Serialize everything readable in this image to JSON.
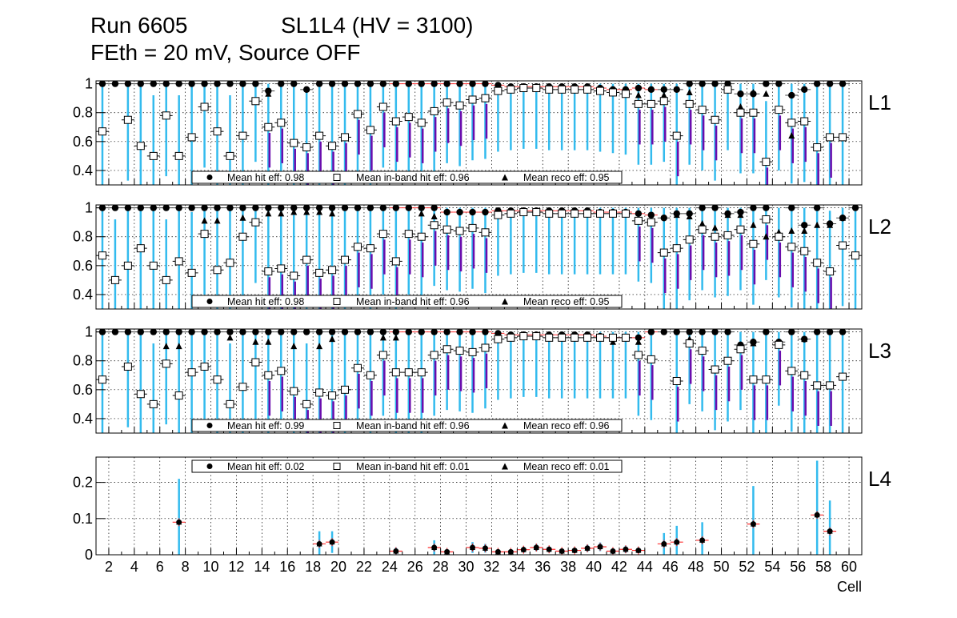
{
  "title": {
    "run": "Run 6605",
    "chamber": "SL1L4 (HV = 3100)",
    "conditions": "FEth = 20 mV, Source OFF"
  },
  "chart_data": {
    "type": "scatter",
    "xlabel": "Cell",
    "xlim": [
      1,
      61
    ],
    "x_ticks": [
      "2",
      "4",
      "6",
      "8",
      "10",
      "12",
      "14",
      "16",
      "18",
      "20",
      "22",
      "24",
      "26",
      "28",
      "30",
      "32",
      "34",
      "36",
      "38",
      "40",
      "42",
      "44",
      "46",
      "48",
      "50",
      "52",
      "54",
      "56",
      "58",
      "60"
    ],
    "cells": [
      1,
      2,
      3,
      4,
      5,
      6,
      7,
      8,
      9,
      10,
      11,
      12,
      13,
      14,
      15,
      16,
      17,
      18,
      19,
      20,
      21,
      22,
      23,
      24,
      25,
      26,
      27,
      28,
      29,
      30,
      31,
      32,
      33,
      34,
      35,
      36,
      37,
      38,
      39,
      40,
      41,
      42,
      43,
      44,
      45,
      46,
      47,
      48,
      49,
      50,
      51,
      52,
      53,
      54,
      55,
      56,
      57,
      58,
      59,
      60
    ],
    "grid": true,
    "colors": {
      "hit": "#000000",
      "inband_err": "#33bbee",
      "reco_err": "#6a0dad",
      "red": "#ff3030"
    },
    "panels": [
      {
        "label": "L1",
        "ylim": [
          0.3,
          1.02
        ],
        "y_ticks": [
          "0.4",
          "0.6",
          "0.8",
          "1"
        ],
        "y_tick_values": [
          0.4,
          0.6,
          0.8,
          1.0
        ],
        "legend": {
          "hit": "Mean hit  eff: 0.98",
          "inband": "Mean in-band hit eff: 0.96",
          "reco": "Mean reco eff: 0.95"
        },
        "hit": [
          1,
          1,
          1,
          1,
          1,
          1,
          1,
          1,
          1,
          1,
          1,
          1,
          1,
          0.95,
          1,
          1,
          0.96,
          1,
          1,
          1,
          1,
          1,
          1,
          1,
          1,
          1,
          1,
          1,
          1,
          1,
          1,
          0.99,
          0.98,
          0.98,
          0.98,
          0.98,
          0.98,
          0.98,
          0.98,
          0.97,
          0.96,
          0.96,
          0.97,
          0.96,
          0.96,
          0.96,
          1,
          1,
          1,
          1,
          0.93,
          0.93,
          1,
          1,
          0.92,
          0.96,
          1,
          1,
          1,
          null
        ],
        "inband": [
          0.67,
          null,
          0.75,
          0.57,
          0.5,
          0.78,
          0.5,
          0.63,
          0.84,
          0.67,
          0.5,
          0.64,
          0.88,
          0.7,
          0.73,
          0.59,
          0.56,
          0.64,
          0.57,
          0.63,
          0.79,
          0.68,
          0.84,
          0.74,
          0.77,
          0.73,
          0.81,
          0.87,
          0.85,
          0.89,
          0.9,
          0.95,
          0.96,
          0.97,
          0.97,
          0.96,
          0.96,
          0.96,
          0.96,
          0.95,
          0.94,
          0.93,
          0.86,
          0.86,
          0.88,
          0.64,
          0.86,
          0.82,
          0.75,
          0.96,
          0.8,
          0.8,
          0.46,
          0.82,
          0.73,
          0.74,
          0.56,
          0.63,
          0.63,
          null
        ],
        "reco": [
          null,
          null,
          null,
          null,
          null,
          null,
          null,
          null,
          null,
          null,
          null,
          null,
          null,
          0.93,
          null,
          null,
          null,
          null,
          null,
          null,
          null,
          null,
          null,
          null,
          null,
          null,
          null,
          null,
          null,
          null,
          null,
          null,
          null,
          null,
          null,
          null,
          null,
          null,
          null,
          null,
          0.94,
          null,
          0.92,
          null,
          0.92,
          null,
          0.94,
          null,
          null,
          null,
          0.84,
          0.94,
          0.93,
          null,
          0.64,
          null,
          null,
          null,
          null,
          null
        ]
      },
      {
        "label": "L2",
        "ylim": [
          0.3,
          1.02
        ],
        "y_ticks": [
          "0.4",
          "0.6",
          "0.8",
          "1"
        ],
        "y_tick_values": [
          0.4,
          0.6,
          0.8,
          1.0
        ],
        "legend": {
          "hit": "Mean hit  eff: 0.98",
          "inband": "Mean in-band hit eff: 0.96",
          "reco": "Mean reco eff: 0.95"
        },
        "hit": [
          1,
          1,
          1,
          1,
          1,
          1,
          1,
          1,
          1,
          1,
          1,
          1,
          1,
          1,
          1,
          1,
          1,
          1,
          1,
          1,
          1,
          1,
          1,
          1,
          1,
          1,
          1,
          0.97,
          0.97,
          0.97,
          0.97,
          0.98,
          0.98,
          0.98,
          0.98,
          0.98,
          0.98,
          0.98,
          0.98,
          0.97,
          0.97,
          0.97,
          0.96,
          0.95,
          0.93,
          0.96,
          0.96,
          1,
          1,
          0.96,
          0.97,
          1,
          1,
          0.8,
          1,
          0.88,
          1,
          0.89,
          0.93,
          1
        ],
        "inband": [
          0.67,
          0.5,
          0.6,
          0.72,
          0.6,
          0.5,
          0.63,
          0.55,
          0.82,
          0.57,
          0.62,
          0.8,
          0.9,
          0.56,
          0.58,
          0.53,
          0.64,
          0.55,
          0.57,
          0.64,
          0.73,
          0.72,
          0.82,
          0.63,
          0.82,
          0.8,
          0.88,
          0.85,
          0.84,
          0.86,
          0.83,
          0.95,
          0.96,
          0.97,
          0.97,
          0.96,
          0.96,
          0.96,
          0.96,
          0.96,
          0.96,
          0.96,
          0.91,
          0.9,
          0.69,
          0.72,
          0.78,
          0.85,
          0.8,
          0.81,
          0.85,
          0.75,
          0.92,
          0.8,
          0.73,
          0.7,
          0.62,
          0.56,
          0.74,
          0.67
        ],
        "reco": [
          null,
          null,
          null,
          null,
          null,
          null,
          null,
          null,
          0.91,
          0.91,
          null,
          0.93,
          null,
          0.96,
          0.96,
          0.97,
          0.97,
          0.97,
          0.96,
          null,
          null,
          null,
          null,
          null,
          null,
          0.96,
          0.94,
          null,
          null,
          null,
          null,
          null,
          null,
          null,
          null,
          null,
          null,
          null,
          null,
          null,
          null,
          null,
          null,
          null,
          null,
          0.95,
          0.94,
          0.89,
          0.86,
          0.95,
          0.95,
          0.88,
          0.8,
          0.83,
          0.84,
          0.84,
          0.88,
          0.88,
          0.93,
          null
        ]
      },
      {
        "label": "L3",
        "ylim": [
          0.3,
          1.02
        ],
        "y_ticks": [
          "0.4",
          "0.6",
          "0.8",
          "1"
        ],
        "y_tick_values": [
          0.4,
          0.6,
          0.8,
          1.0
        ],
        "legend": {
          "hit": "Mean hit  eff: 0.99",
          "inband": "Mean in-band hit eff: 0.96",
          "reco": "Mean reco eff: 0.96"
        },
        "hit": [
          1,
          1,
          1,
          1,
          1,
          1,
          1,
          1,
          1,
          1,
          1,
          1,
          1,
          1,
          1,
          1,
          1,
          1,
          1,
          1,
          1,
          1,
          1,
          1,
          1,
          1,
          1,
          1,
          1,
          1,
          1,
          0.99,
          0.98,
          0.98,
          0.98,
          0.98,
          0.98,
          0.98,
          0.98,
          0.97,
          0.96,
          0.96,
          0.96,
          1,
          1,
          1,
          1,
          1,
          1,
          1,
          0.91,
          0.93,
          1,
          0.93,
          1,
          0.95,
          1,
          1,
          1,
          null
        ],
        "inband": [
          0.67,
          null,
          0.76,
          0.57,
          0.5,
          0.78,
          0.56,
          0.72,
          0.76,
          0.67,
          0.5,
          0.62,
          0.79,
          0.7,
          0.73,
          0.59,
          0.5,
          0.58,
          0.56,
          0.6,
          0.75,
          0.7,
          0.84,
          0.72,
          0.72,
          0.72,
          0.84,
          0.88,
          0.87,
          0.86,
          0.89,
          0.95,
          0.96,
          0.97,
          0.97,
          0.96,
          0.96,
          0.96,
          0.96,
          0.96,
          0.96,
          0.96,
          0.84,
          0.81,
          null,
          0.66,
          0.92,
          0.87,
          0.74,
          0.8,
          0.88,
          0.67,
          0.67,
          0.91,
          0.73,
          0.7,
          0.63,
          0.63,
          0.69,
          null
        ],
        "reco": [
          null,
          null,
          null,
          null,
          null,
          0.9,
          0.9,
          null,
          null,
          null,
          0.96,
          null,
          0.93,
          0.93,
          null,
          0.9,
          null,
          0.9,
          0.95,
          null,
          null,
          null,
          0.96,
          0.96,
          null,
          null,
          null,
          null,
          null,
          null,
          null,
          null,
          null,
          null,
          null,
          null,
          null,
          null,
          null,
          null,
          0.93,
          null,
          0.93,
          null,
          null,
          null,
          0.95,
          null,
          null,
          null,
          0.91,
          0.92,
          null,
          0.91,
          null,
          0.95,
          null,
          null,
          null,
          null
        ]
      },
      {
        "label": "L4",
        "ylim": [
          0,
          0.27
        ],
        "y_ticks": [
          "0",
          "0.1",
          "0.2"
        ],
        "y_tick_values": [
          0,
          0.1,
          0.2
        ],
        "legend": {
          "hit": "Mean hit  eff: 0.02",
          "inband": "Mean in-band hit eff: 0.01",
          "reco": "Mean reco eff: 0.01"
        },
        "points": [
          {
            "cell": 7,
            "value": 0.09,
            "err": 0.12
          },
          {
            "cell": 18,
            "value": 0.03,
            "err": 0.035
          },
          {
            "cell": 19,
            "value": 0.035,
            "err": 0.03
          },
          {
            "cell": 24,
            "value": 0.01,
            "err": 0.01
          },
          {
            "cell": 27,
            "value": 0.02,
            "err": 0.02
          },
          {
            "cell": 28,
            "value": 0.008,
            "err": 0.008
          },
          {
            "cell": 30,
            "value": 0.02,
            "err": 0.015
          },
          {
            "cell": 31,
            "value": 0.018,
            "err": 0.012
          },
          {
            "cell": 32,
            "value": 0.008,
            "err": 0.006
          },
          {
            "cell": 33,
            "value": 0.008,
            "err": 0.006
          },
          {
            "cell": 34,
            "value": 0.014,
            "err": 0.008
          },
          {
            "cell": 35,
            "value": 0.02,
            "err": 0.01
          },
          {
            "cell": 36,
            "value": 0.015,
            "err": 0.008
          },
          {
            "cell": 37,
            "value": 0.01,
            "err": 0.006
          },
          {
            "cell": 38,
            "value": 0.012,
            "err": 0.007
          },
          {
            "cell": 39,
            "value": 0.018,
            "err": 0.01
          },
          {
            "cell": 40,
            "value": 0.022,
            "err": 0.012
          },
          {
            "cell": 41,
            "value": 0.01,
            "err": 0.008
          },
          {
            "cell": 42,
            "value": 0.015,
            "err": 0.01
          },
          {
            "cell": 43,
            "value": 0.012,
            "err": 0.008
          },
          {
            "cell": 45,
            "value": 0.03,
            "err": 0.03
          },
          {
            "cell": 46,
            "value": 0.035,
            "err": 0.045
          },
          {
            "cell": 48,
            "value": 0.04,
            "err": 0.05
          },
          {
            "cell": 52,
            "value": 0.085,
            "err": 0.105
          },
          {
            "cell": 57,
            "value": 0.11,
            "err": 0.15
          },
          {
            "cell": 58,
            "value": 0.065,
            "err": 0.085
          }
        ]
      }
    ]
  }
}
